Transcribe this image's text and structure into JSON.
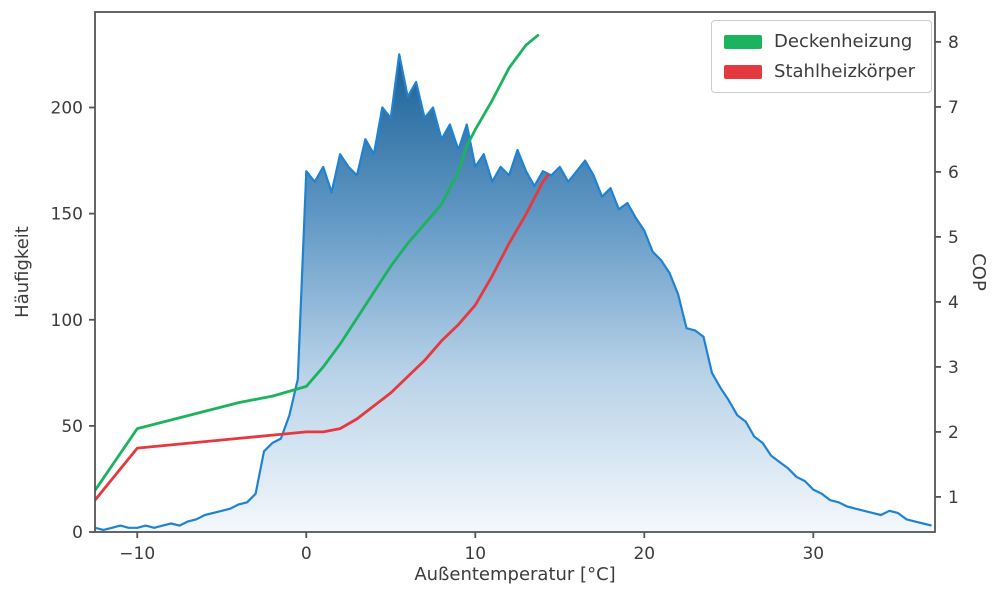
{
  "figure": {
    "background": "#ffffff",
    "text_color": "#3c3c3c",
    "spine_color": "#555555"
  },
  "chart_data": {
    "type": "area+line",
    "title": "",
    "xlabel": "Außentemperatur [°C]",
    "ylabel_left": "Häufigkeit",
    "ylabel_right": "COP",
    "grid": false,
    "legend_position": "top-right",
    "x_range": [
      -12.5,
      37.2
    ],
    "y_left_range": [
      0,
      245
    ],
    "y_right_range": [
      0.46,
      8.46
    ],
    "x_ticks": [
      -10,
      0,
      10,
      20,
      30
    ],
    "y_left_ticks": [
      0,
      50,
      100,
      150,
      200
    ],
    "y_right_ticks": [
      1,
      2,
      3,
      4,
      5,
      6,
      7,
      8
    ],
    "histogram": {
      "name": "Häufigkeit (Außentemperatur)",
      "axis": "left",
      "color": "#1f82d2",
      "fill_gradient": [
        "#1a6096",
        "#5f97c4",
        "#b8d2e8",
        "#f4f8fc"
      ],
      "x_start": -12.5,
      "x_step": 0.5,
      "values": [
        2,
        1,
        2,
        3,
        2,
        2,
        3,
        2,
        3,
        4,
        3,
        5,
        6,
        8,
        9,
        10,
        11,
        13,
        14,
        18,
        38,
        42,
        44,
        55,
        72,
        170,
        165,
        172,
        160,
        178,
        172,
        168,
        185,
        178,
        200,
        195,
        225,
        205,
        212,
        195,
        200,
        185,
        192,
        180,
        192,
        172,
        178,
        165,
        172,
        168,
        180,
        170,
        163,
        170,
        168,
        172,
        165,
        170,
        175,
        168,
        158,
        162,
        152,
        155,
        148,
        142,
        132,
        128,
        122,
        112,
        96,
        95,
        92,
        75,
        68,
        62,
        55,
        52,
        45,
        42,
        36,
        33,
        30,
        26,
        24,
        20,
        18,
        15,
        14,
        12,
        11,
        10,
        9,
        8,
        10,
        9,
        6,
        5,
        4,
        3
      ]
    },
    "series": [
      {
        "name": "Deckenheizung",
        "axis": "right",
        "color": "#1cb35f",
        "x": [
          -12.5,
          -10,
          -7,
          -4,
          -2,
          0,
          1,
          2,
          3,
          4,
          5,
          6,
          7,
          8,
          9,
          9.5,
          10,
          11,
          12,
          13,
          13.7
        ],
        "values": [
          1.1,
          2.05,
          2.25,
          2.45,
          2.55,
          2.7,
          3.0,
          3.35,
          3.75,
          4.15,
          4.55,
          4.9,
          5.2,
          5.5,
          6.0,
          6.4,
          6.65,
          7.1,
          7.6,
          7.95,
          8.1
        ]
      },
      {
        "name": "Stahlheizkörper",
        "axis": "right",
        "color": "#e53940",
        "x": [
          -12.5,
          -10,
          -8,
          -6,
          -4,
          -2,
          0,
          1,
          2,
          3,
          4,
          5,
          6,
          7,
          8,
          9,
          10,
          11,
          12,
          13,
          14,
          14.3
        ],
        "values": [
          0.95,
          1.75,
          1.8,
          1.85,
          1.9,
          1.95,
          2.0,
          2.0,
          2.05,
          2.2,
          2.4,
          2.6,
          2.85,
          3.1,
          3.4,
          3.65,
          3.95,
          4.4,
          4.9,
          5.35,
          5.85,
          5.95
        ]
      }
    ]
  }
}
